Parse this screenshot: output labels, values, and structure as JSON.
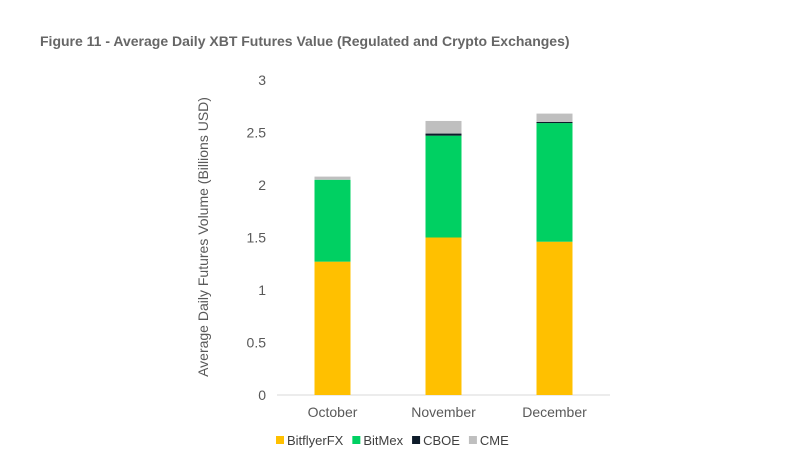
{
  "chart_data": {
    "type": "bar",
    "stacked": true,
    "title": "Figure 11 - Average Daily XBT Futures Value (Regulated and Crypto Exchanges)",
    "xlabel": "",
    "ylabel": "Average Daily Futures Volume (Billions USD)",
    "ylim": [
      0,
      3
    ],
    "yticks": [
      "0",
      "0.5",
      "1",
      "1.5",
      "2",
      "2.5",
      "3"
    ],
    "categories": [
      "October",
      "November",
      "December"
    ],
    "series": [
      {
        "name": "BitflyerFX",
        "color": "#FFC000",
        "values": [
          1.27,
          1.5,
          1.46
        ]
      },
      {
        "name": "BitMex",
        "color": "#00D062",
        "values": [
          0.78,
          0.97,
          1.13
        ]
      },
      {
        "name": "CBOE",
        "color": "#0D1B2A",
        "values": [
          0.0,
          0.02,
          0.01
        ]
      },
      {
        "name": "CME",
        "color": "#BFBFBF",
        "values": [
          0.03,
          0.12,
          0.08
        ]
      }
    ],
    "legend": "bottom",
    "grid": false
  }
}
